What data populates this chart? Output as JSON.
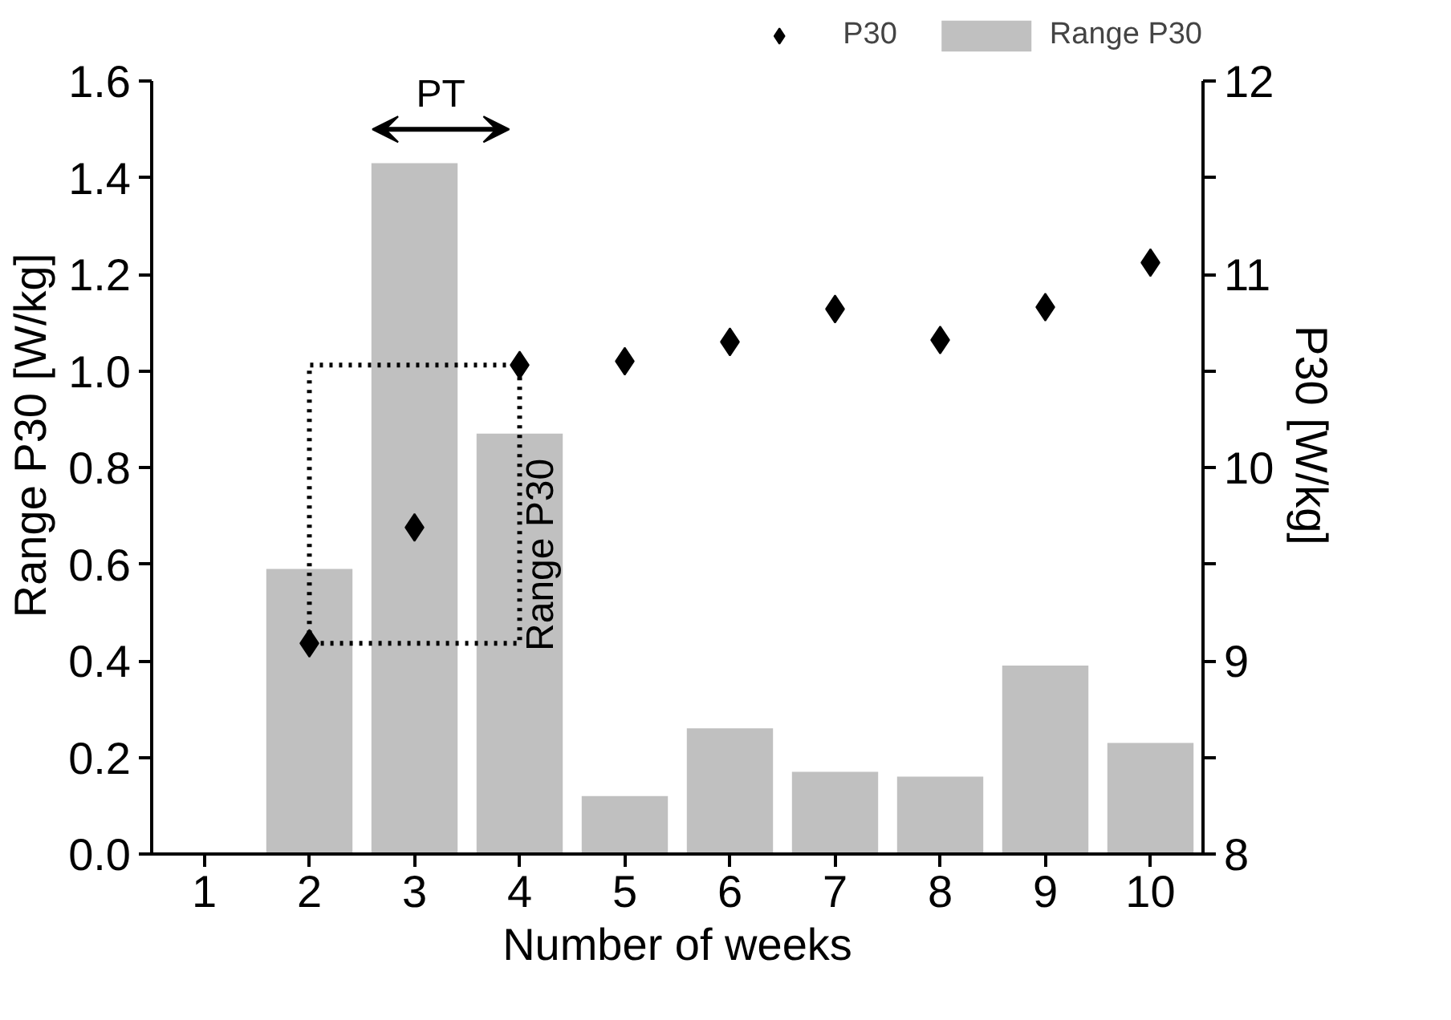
{
  "chart_data": {
    "type": "bar",
    "xlabel": "Number of weeks",
    "ylabel": "Range P30 [W/kg]",
    "y2label": "P30 [W/kg]",
    "categories": [
      "1",
      "2",
      "3",
      "4",
      "5",
      "6",
      "7",
      "8",
      "9",
      "10"
    ],
    "series": [
      {
        "name": "P30",
        "type": "scatter",
        "axis": "y2",
        "color": "#000000",
        "marker": "diamond",
        "values": [
          null,
          9.09,
          9.69,
          10.53,
          10.55,
          10.65,
          10.82,
          10.66,
          10.83,
          11.06
        ]
      },
      {
        "name": "Range P30",
        "type": "bar",
        "color": "#c0c0c0",
        "values": [
          null,
          0.59,
          1.43,
          0.87,
          0.12,
          0.26,
          0.17,
          0.16,
          0.39,
          0.23
        ]
      }
    ],
    "ylim": [
      0,
      1.6
    ],
    "yticks": [
      {
        "value": 0,
        "label": "0.0"
      },
      {
        "value": 0.2,
        "label": "0.2"
      },
      {
        "value": 0.4,
        "label": "0.4"
      },
      {
        "value": 0.6,
        "label": "0.6"
      },
      {
        "value": 0.8,
        "label": "0.8"
      },
      {
        "value": 1.0,
        "label": "1.0"
      },
      {
        "value": 1.2,
        "label": "1.2"
      },
      {
        "value": 1.4,
        "label": "1.4"
      },
      {
        "value": 1.6,
        "label": "1.6"
      }
    ],
    "y2lim": [
      8,
      12
    ],
    "y2ticks": [
      8,
      {
        "value": 8.5,
        "label": null
      },
      9,
      {
        "value": 9.5,
        "label": null
      },
      10,
      {
        "value": 10.5,
        "label": null
      },
      11,
      {
        "value": 11.5,
        "label": null
      },
      12
    ],
    "annotations": [
      "PT",
      "Range P30"
    ],
    "grid": false,
    "legend": "top right"
  }
}
